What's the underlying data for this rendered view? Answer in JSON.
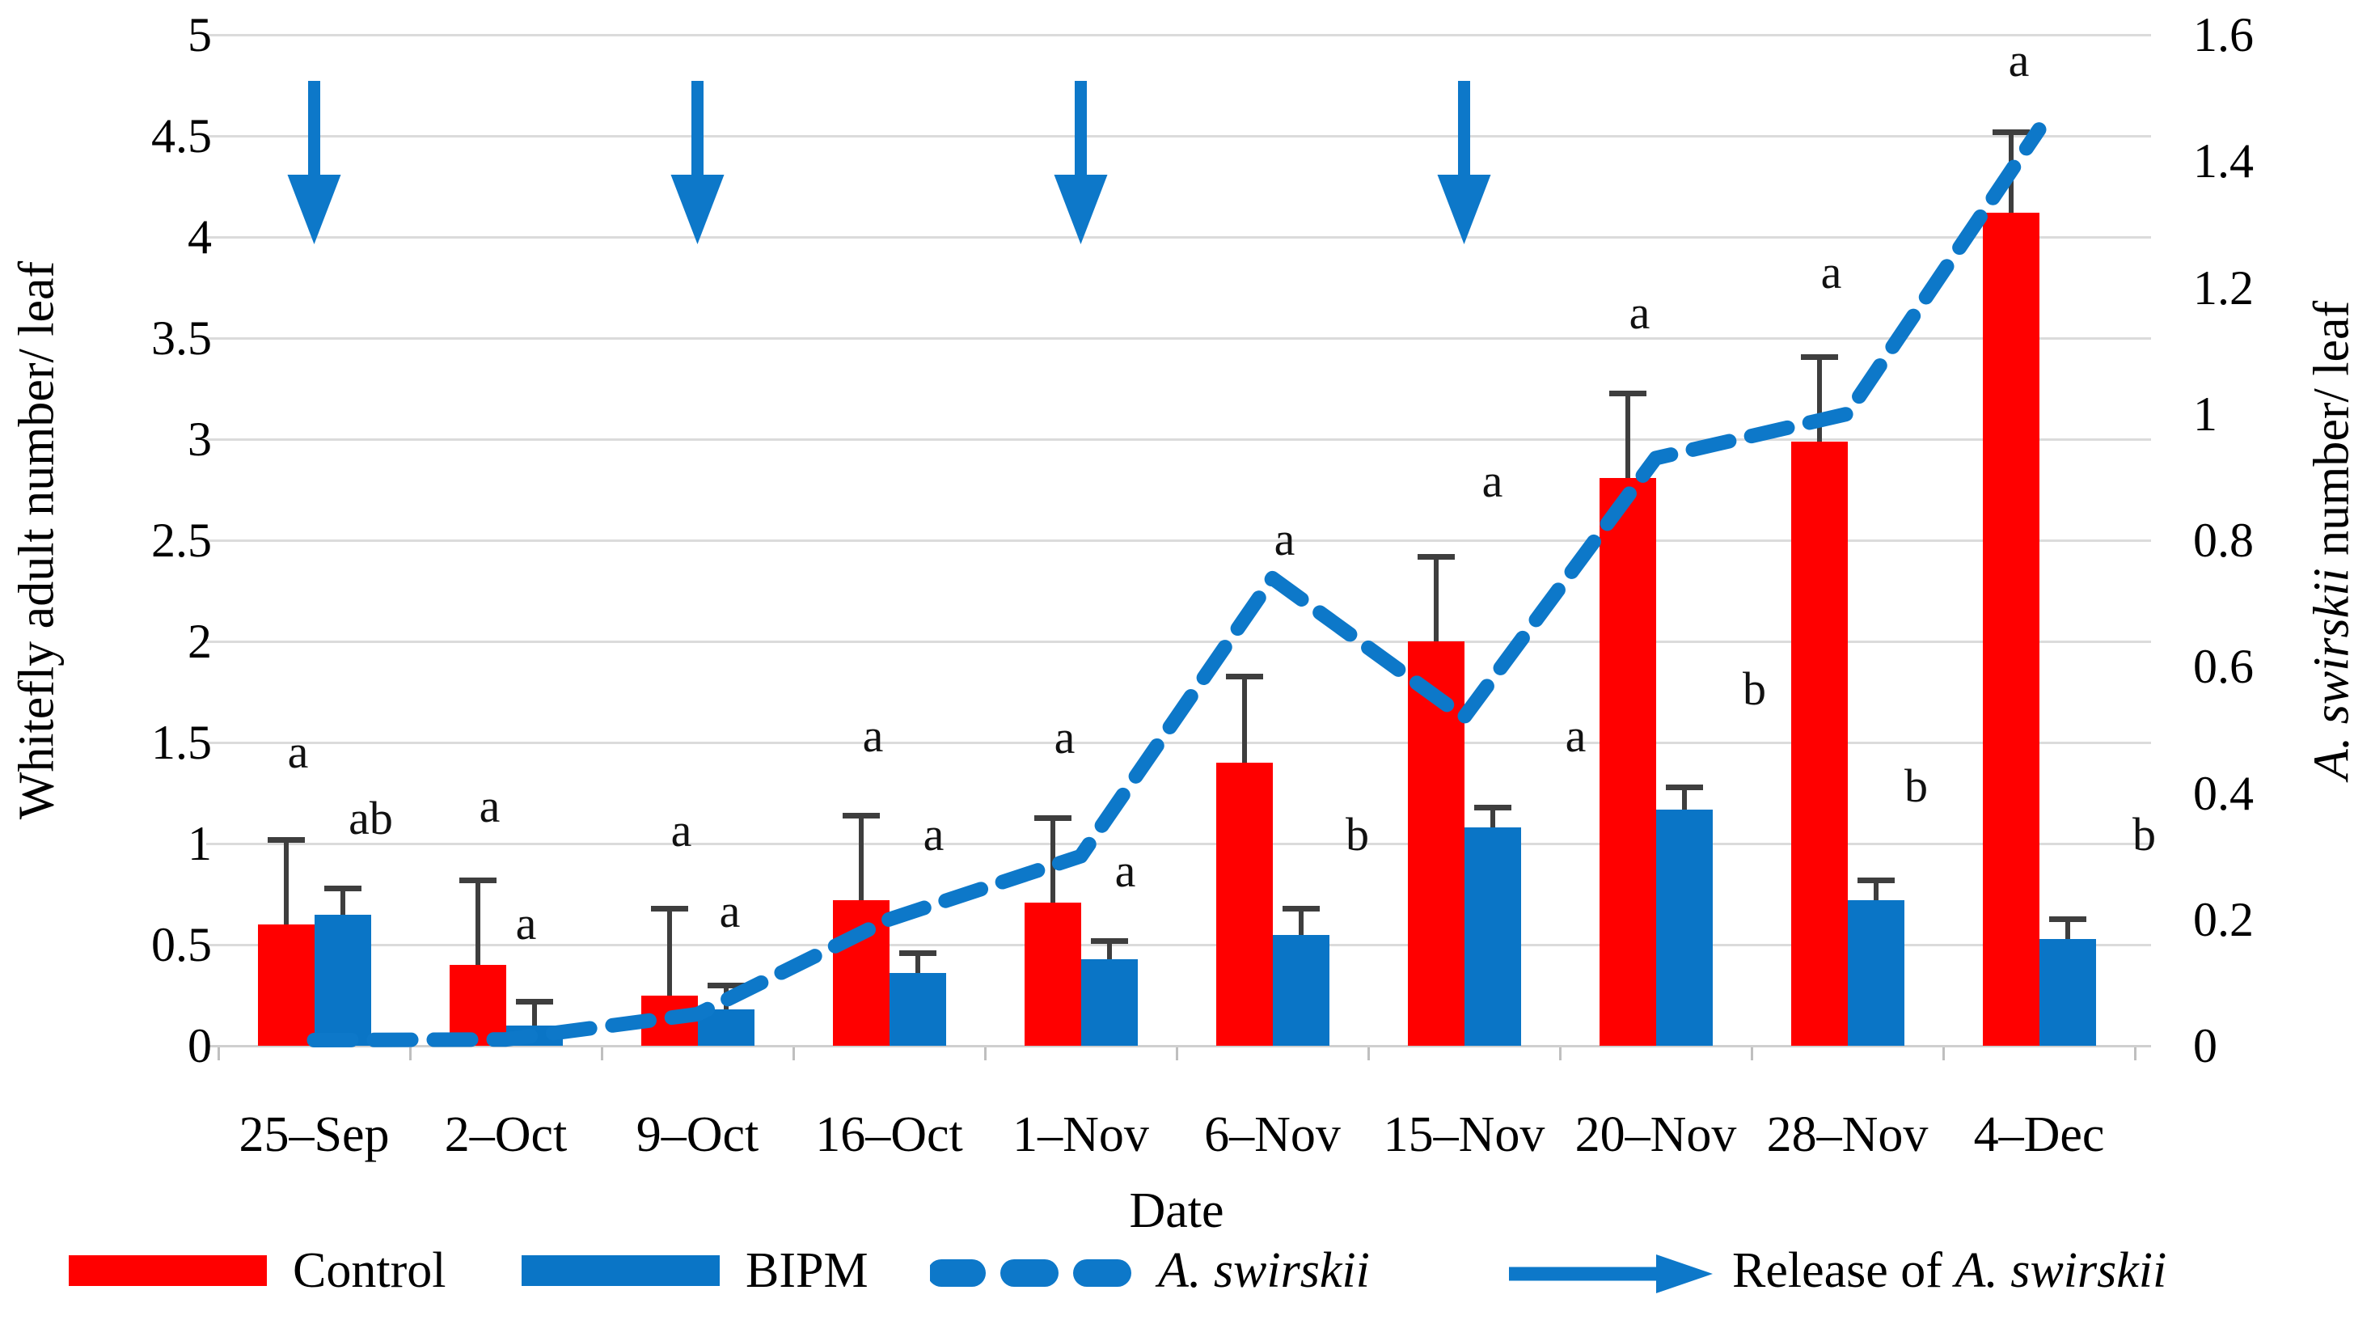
{
  "chart_data": {
    "type": "bar",
    "title": "",
    "categories": [
      "25–Sep",
      "2–Oct",
      "9–Oct",
      "16–Oct",
      "1–Nov",
      "6–Nov",
      "15–Nov",
      "20–Nov",
      "28–Nov",
      "4–Dec"
    ],
    "x_axis_label": "Date",
    "left_axis": {
      "label": "Whitefly adult number/ leaf",
      "min": 0,
      "max": 5,
      "step": 0.5,
      "ticks": [
        "0",
        "0.5",
        "1",
        "1.5",
        "2",
        "2.5",
        "3",
        "3.5",
        "4",
        "4.5",
        "5"
      ]
    },
    "right_axis": {
      "label_italic": "A. swirskii",
      "label_rest": " number/ leaf",
      "min": 0,
      "max": 1.6,
      "step": 0.2,
      "ticks": [
        "0",
        "0.2",
        "0.4",
        "0.6",
        "0.8",
        "1",
        "1.2",
        "1.4",
        "1.6"
      ]
    },
    "grid": true,
    "legend_position": "bottom",
    "series": [
      {
        "name": "Control",
        "type": "bar",
        "axis": "left",
        "color": "#FF0000",
        "values": [
          0.6,
          0.4,
          0.25,
          0.72,
          0.71,
          1.4,
          2.0,
          2.81,
          2.99,
          4.12
        ],
        "error_up": [
          0.42,
          0.42,
          0.43,
          0.42,
          0.42,
          0.43,
          0.42,
          0.42,
          0.42,
          0.4
        ],
        "letters": [
          "a",
          "a",
          "a",
          "a",
          "a",
          "a",
          "a",
          "a",
          "a",
          "a"
        ],
        "letter_y": [
          1.45,
          1.18,
          1.06,
          1.53,
          1.52,
          2.5,
          2.79,
          3.62,
          3.82,
          4.87
        ],
        "letter_dx": [
          -20,
          -20,
          -20,
          -20,
          -20,
          15,
          35,
          -20,
          -20,
          -25
        ]
      },
      {
        "name": "BIPM",
        "type": "bar",
        "axis": "left",
        "color": "#0A75C6",
        "values": [
          0.65,
          0.1,
          0.18,
          0.36,
          0.43,
          0.55,
          1.08,
          1.17,
          0.72,
          0.53
        ],
        "error_up": [
          0.13,
          0.12,
          0.12,
          0.1,
          0.09,
          0.13,
          0.1,
          0.11,
          0.1,
          0.1
        ],
        "letters": [
          "ab",
          "a",
          "a",
          "a",
          "a",
          "b",
          "a",
          "b",
          "b",
          "b"
        ],
        "letter_y": [
          1.12,
          0.6,
          0.66,
          1.04,
          0.86,
          1.04,
          1.53,
          1.76,
          1.28,
          1.04
        ],
        "letter_dx": [
          70,
          25,
          40,
          55,
          55,
          105,
          138,
          122,
          85,
          130
        ]
      },
      {
        "name": "A. swirskii",
        "type": "dashed-line",
        "axis": "right",
        "color": "#0D78C9",
        "values": [
          0.0,
          0.01,
          0.05,
          0.2,
          0.3,
          0.74,
          0.52,
          0.93,
          1.0,
          1.45
        ]
      }
    ],
    "release_arrows": {
      "category_indexes": [
        0,
        2,
        4,
        6
      ],
      "color": "#0D78C9"
    }
  },
  "legend": {
    "control": "Control",
    "bipm": "BIPM",
    "swirskii_italic": "A. swirskii",
    "release_prefix": "Release of ",
    "release_italic": "A. swirskii"
  }
}
